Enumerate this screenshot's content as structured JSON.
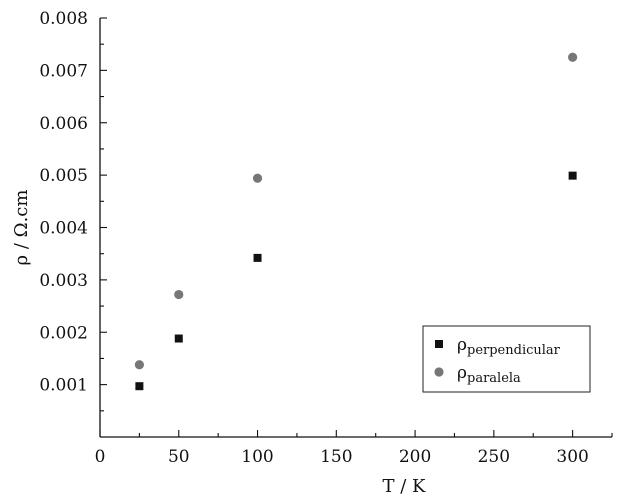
{
  "chart_data": {
    "type": "scatter",
    "title": "",
    "xlabel": "T / K",
    "ylabel": "ρ / Ω.cm",
    "xlim": [
      0,
      325
    ],
    "ylim": [
      0,
      0.008
    ],
    "xticks": [
      0,
      50,
      100,
      150,
      200,
      250,
      300
    ],
    "xtick_labels": [
      "0",
      "50",
      "100",
      "150",
      "200",
      "250",
      "300"
    ],
    "yticks": [
      0.001,
      0.002,
      0.003,
      0.004,
      0.005,
      0.006,
      0.007,
      0.008
    ],
    "ytick_labels": [
      "0.001",
      "0.002",
      "0.003",
      "0.004",
      "0.005",
      "0.006",
      "0.007",
      "0.008"
    ],
    "grid": false,
    "legend_position": "bottom-right",
    "series": [
      {
        "name_base": "ρ",
        "name_sub": "perpendicular",
        "marker": "square",
        "color": "#111111",
        "x": [
          25,
          50,
          100,
          300
        ],
        "y": [
          0.00097,
          0.00188,
          0.00342,
          0.00499
        ]
      },
      {
        "name_base": "ρ",
        "name_sub": "paralela",
        "marker": "circle",
        "color": "#777777",
        "x": [
          25,
          50,
          100,
          300
        ],
        "y": [
          0.00138,
          0.00272,
          0.00494,
          0.00725
        ]
      }
    ]
  }
}
